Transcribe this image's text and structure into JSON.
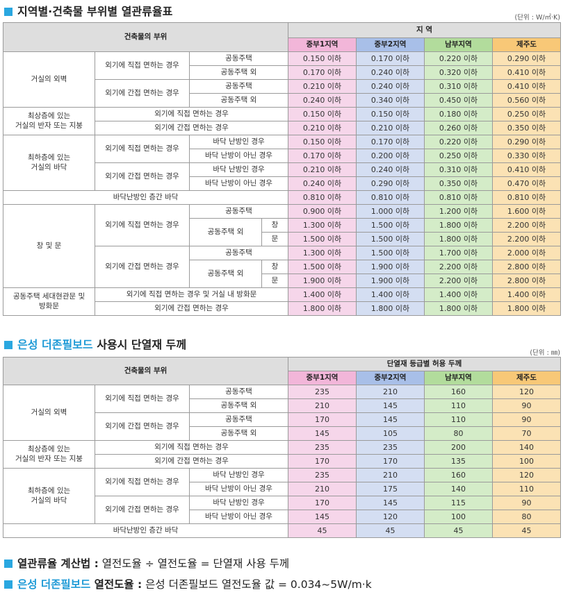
{
  "section1": {
    "title": "지역별·건축물 부위별 열관류율표",
    "unit": "(단위 : W/㎡·K)",
    "head_part": "건축물의 부위",
    "head_region": "지 역",
    "zones": [
      "중부1지역",
      "중부2지역",
      "남부지역",
      "제주도"
    ],
    "rows": [
      {
        "a": "거실의 외벽",
        "b": "외기에 직접 면하는 경우",
        "c": "공동주택",
        "d": "",
        "v": [
          "0.150 이하",
          "0.170 이하",
          "0.220 이하",
          "0.290 이하"
        ]
      },
      {
        "c": "공동주택 외",
        "v": [
          "0.170 이하",
          "0.240 이하",
          "0.320 이하",
          "0.410 이하"
        ]
      },
      {
        "b": "외기에 간접 면하는 경우",
        "c": "공동주택",
        "v": [
          "0.210 이하",
          "0.240 이하",
          "0.310 이하",
          "0.410 이하"
        ]
      },
      {
        "c": "공동주택 외",
        "v": [
          "0.240 이하",
          "0.340 이하",
          "0.450 이하",
          "0.560 이하"
        ]
      },
      {
        "a": "최상층에 있는\n거실의 반자 또는 지붕",
        "b": "외기에 직접 면하는 경우",
        "v": [
          "0.150 이하",
          "0.150 이하",
          "0.180 이하",
          "0.250 이하"
        ]
      },
      {
        "b": "외기에 간접 면하는 경우",
        "v": [
          "0.210 이하",
          "0.210 이하",
          "0.260 이하",
          "0.350 이하"
        ]
      },
      {
        "a": "최하층에 있는\n거실의 바닥",
        "b": "외기에 직접 면하는 경우",
        "c": "바닥 난방인 경우",
        "v": [
          "0.150 이하",
          "0.170 이하",
          "0.220 이하",
          "0.290 이하"
        ]
      },
      {
        "c": "바닥 난방이 아닌 경우",
        "v": [
          "0.170 이하",
          "0.200 이하",
          "0.250 이하",
          "0.330 이하"
        ]
      },
      {
        "b": "외기에 간접 면하는 경우",
        "c": "바닥 난방인 경우",
        "v": [
          "0.210 이하",
          "0.240 이하",
          "0.310 이하",
          "0.410 이하"
        ]
      },
      {
        "c": "바닥 난방이 아닌 경우",
        "v": [
          "0.240 이하",
          "0.290 이하",
          "0.350 이하",
          "0.470 이하"
        ]
      },
      {
        "a": "바닥난방인 층간 바닥",
        "v": [
          "0.810 이하",
          "0.810 이하",
          "0.810 이하",
          "0.810 이하"
        ]
      },
      {
        "a": "창 및 문",
        "b": "외기에 직접 면하는 경우",
        "c": "공동주택",
        "v": [
          "0.900 이하",
          "1.000 이하",
          "1.200 이하",
          "1.600 이하"
        ]
      },
      {
        "c": "공동주택 외",
        "d": "창",
        "v": [
          "1.300 이하",
          "1.500 이하",
          "1.800 이하",
          "2.200 이하"
        ]
      },
      {
        "d": "문",
        "v": [
          "1.500 이하",
          "1.500 이하",
          "1.800 이하",
          "2.200 이하"
        ]
      },
      {
        "b": "외기에 간접 면하는 경우",
        "c": "공동주택",
        "v": [
          "1.300 이하",
          "1.500 이하",
          "1.700 이하",
          "2.000 이하"
        ]
      },
      {
        "c": "공동주택 외",
        "d": "창",
        "v": [
          "1.500 이하",
          "1.900 이하",
          "2.200 이하",
          "2.800 이하"
        ]
      },
      {
        "d": "문",
        "v": [
          "1.900 이하",
          "1.900 이하",
          "2.200 이하",
          "2.800 이하"
        ]
      },
      {
        "a": "공동주택 세대현관문 및\n방화문",
        "b": "외기에 직접 면하는 경우 및 거실 내 방화문",
        "v": [
          "1.400 이하",
          "1.400 이하",
          "1.400 이하",
          "1.400 이하"
        ]
      },
      {
        "b": "외기에 간접 면하는 경우",
        "v": [
          "1.800 이하",
          "1.800 이하",
          "1.800 이하",
          "1.800 이하"
        ]
      }
    ]
  },
  "section2": {
    "title_blue": "은성 더존필보드",
    "title_rest": " 사용시 단열재 두께",
    "unit": "(단위 : ㎜)",
    "head_part": "건축물의 부위",
    "head_grade": "단열재 등급별 허용 두께",
    "zones": [
      "중부1지역",
      "중부2지역",
      "남부지역",
      "제주도"
    ],
    "rows": [
      {
        "a": "거실의 외벽",
        "b": "외기에 직접 면하는 경우",
        "c": "공동주택",
        "v": [
          "235",
          "210",
          "160",
          "120"
        ]
      },
      {
        "c": "공동주택 외",
        "v": [
          "210",
          "145",
          "110",
          "90"
        ]
      },
      {
        "b": "외기에 간접 면하는 경우",
        "c": "공동주택",
        "v": [
          "170",
          "145",
          "110",
          "90"
        ]
      },
      {
        "c": "공동주택 외",
        "v": [
          "145",
          "105",
          "80",
          "70"
        ]
      },
      {
        "a": "최상층에 있는\n거실의 반자 또는 지붕",
        "b": "외기에 직접 면하는 경우",
        "v": [
          "235",
          "235",
          "200",
          "140"
        ]
      },
      {
        "b": "외기에 간접 면하는 경우",
        "v": [
          "170",
          "170",
          "135",
          "100"
        ]
      },
      {
        "a": "최하층에 있는\n거실의 바닥",
        "b": "외기에 직접 면하는 경우",
        "c": "바닥 난방인 경우",
        "v": [
          "235",
          "210",
          "160",
          "120"
        ]
      },
      {
        "c": "바닥 난방이 아닌 경우",
        "v": [
          "210",
          "175",
          "140",
          "110"
        ]
      },
      {
        "b": "외기에 간접 면하는 경우",
        "c": "바닥 난방인 경우",
        "v": [
          "170",
          "145",
          "115",
          "90"
        ]
      },
      {
        "c": "바닥 난방이 아닌 경우",
        "v": [
          "145",
          "120",
          "100",
          "80"
        ]
      },
      {
        "a": "바닥난방인 층간 바닥",
        "v": [
          "45",
          "45",
          "45",
          "45"
        ]
      }
    ]
  },
  "notes": {
    "calc_label": "열관류율 계산법 :",
    "calc_text": " 열전도율 ÷ 열전도율 = 단열재 사용 두께",
    "brand": "은성 더존필보드",
    "cond_label": " 열전도율 :",
    "cond_text": " 은성 더존필보드 열전도율 값 = 0.034~5W/m·k"
  }
}
